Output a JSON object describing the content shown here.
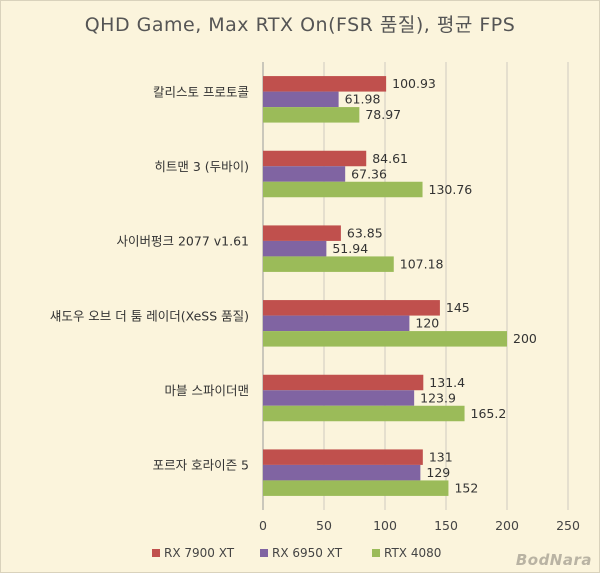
{
  "chart_data": {
    "type": "bar",
    "orientation": "horizontal",
    "title": "QHD Game, Max RTX On(FSR 품질), 평균 FPS",
    "categories": [
      "칼리스토 프로토콜",
      "히트맨 3 (두바이)",
      "사이버펑크 2077 v1.61",
      "섀도우 오브 더 툼 레이더(XeSS 품질)",
      "마블 스파이더맨",
      "포르자 호라이즌 5"
    ],
    "series": [
      {
        "name": "RX 7900 XT",
        "color": "#c0504d",
        "values": [
          100.93,
          84.61,
          63.85,
          145,
          131.4,
          131
        ],
        "labels": [
          "100.93",
          "84.61",
          "63.85",
          "145",
          "131.4",
          "131"
        ]
      },
      {
        "name": "RX 6950 XT",
        "color": "#8064a2",
        "values": [
          61.98,
          67.36,
          51.94,
          120,
          123.9,
          129
        ],
        "labels": [
          "61.98",
          "67.36",
          "51.94",
          "120",
          "123.9",
          "129"
        ]
      },
      {
        "name": "RTX 4080",
        "color": "#9bbb59",
        "values": [
          78.97,
          130.76,
          107.18,
          200,
          165.2,
          152
        ],
        "labels": [
          "78.97",
          "130.76",
          "107.18",
          "200",
          "165.2",
          "152"
        ]
      }
    ],
    "xlim": [
      0,
      250
    ],
    "xticks": [
      "0",
      "50",
      "100",
      "150",
      "200",
      "250"
    ],
    "grid": "vertical",
    "legend_position": "bottom",
    "xlabel": "",
    "ylabel": ""
  },
  "watermark": "BodNara"
}
